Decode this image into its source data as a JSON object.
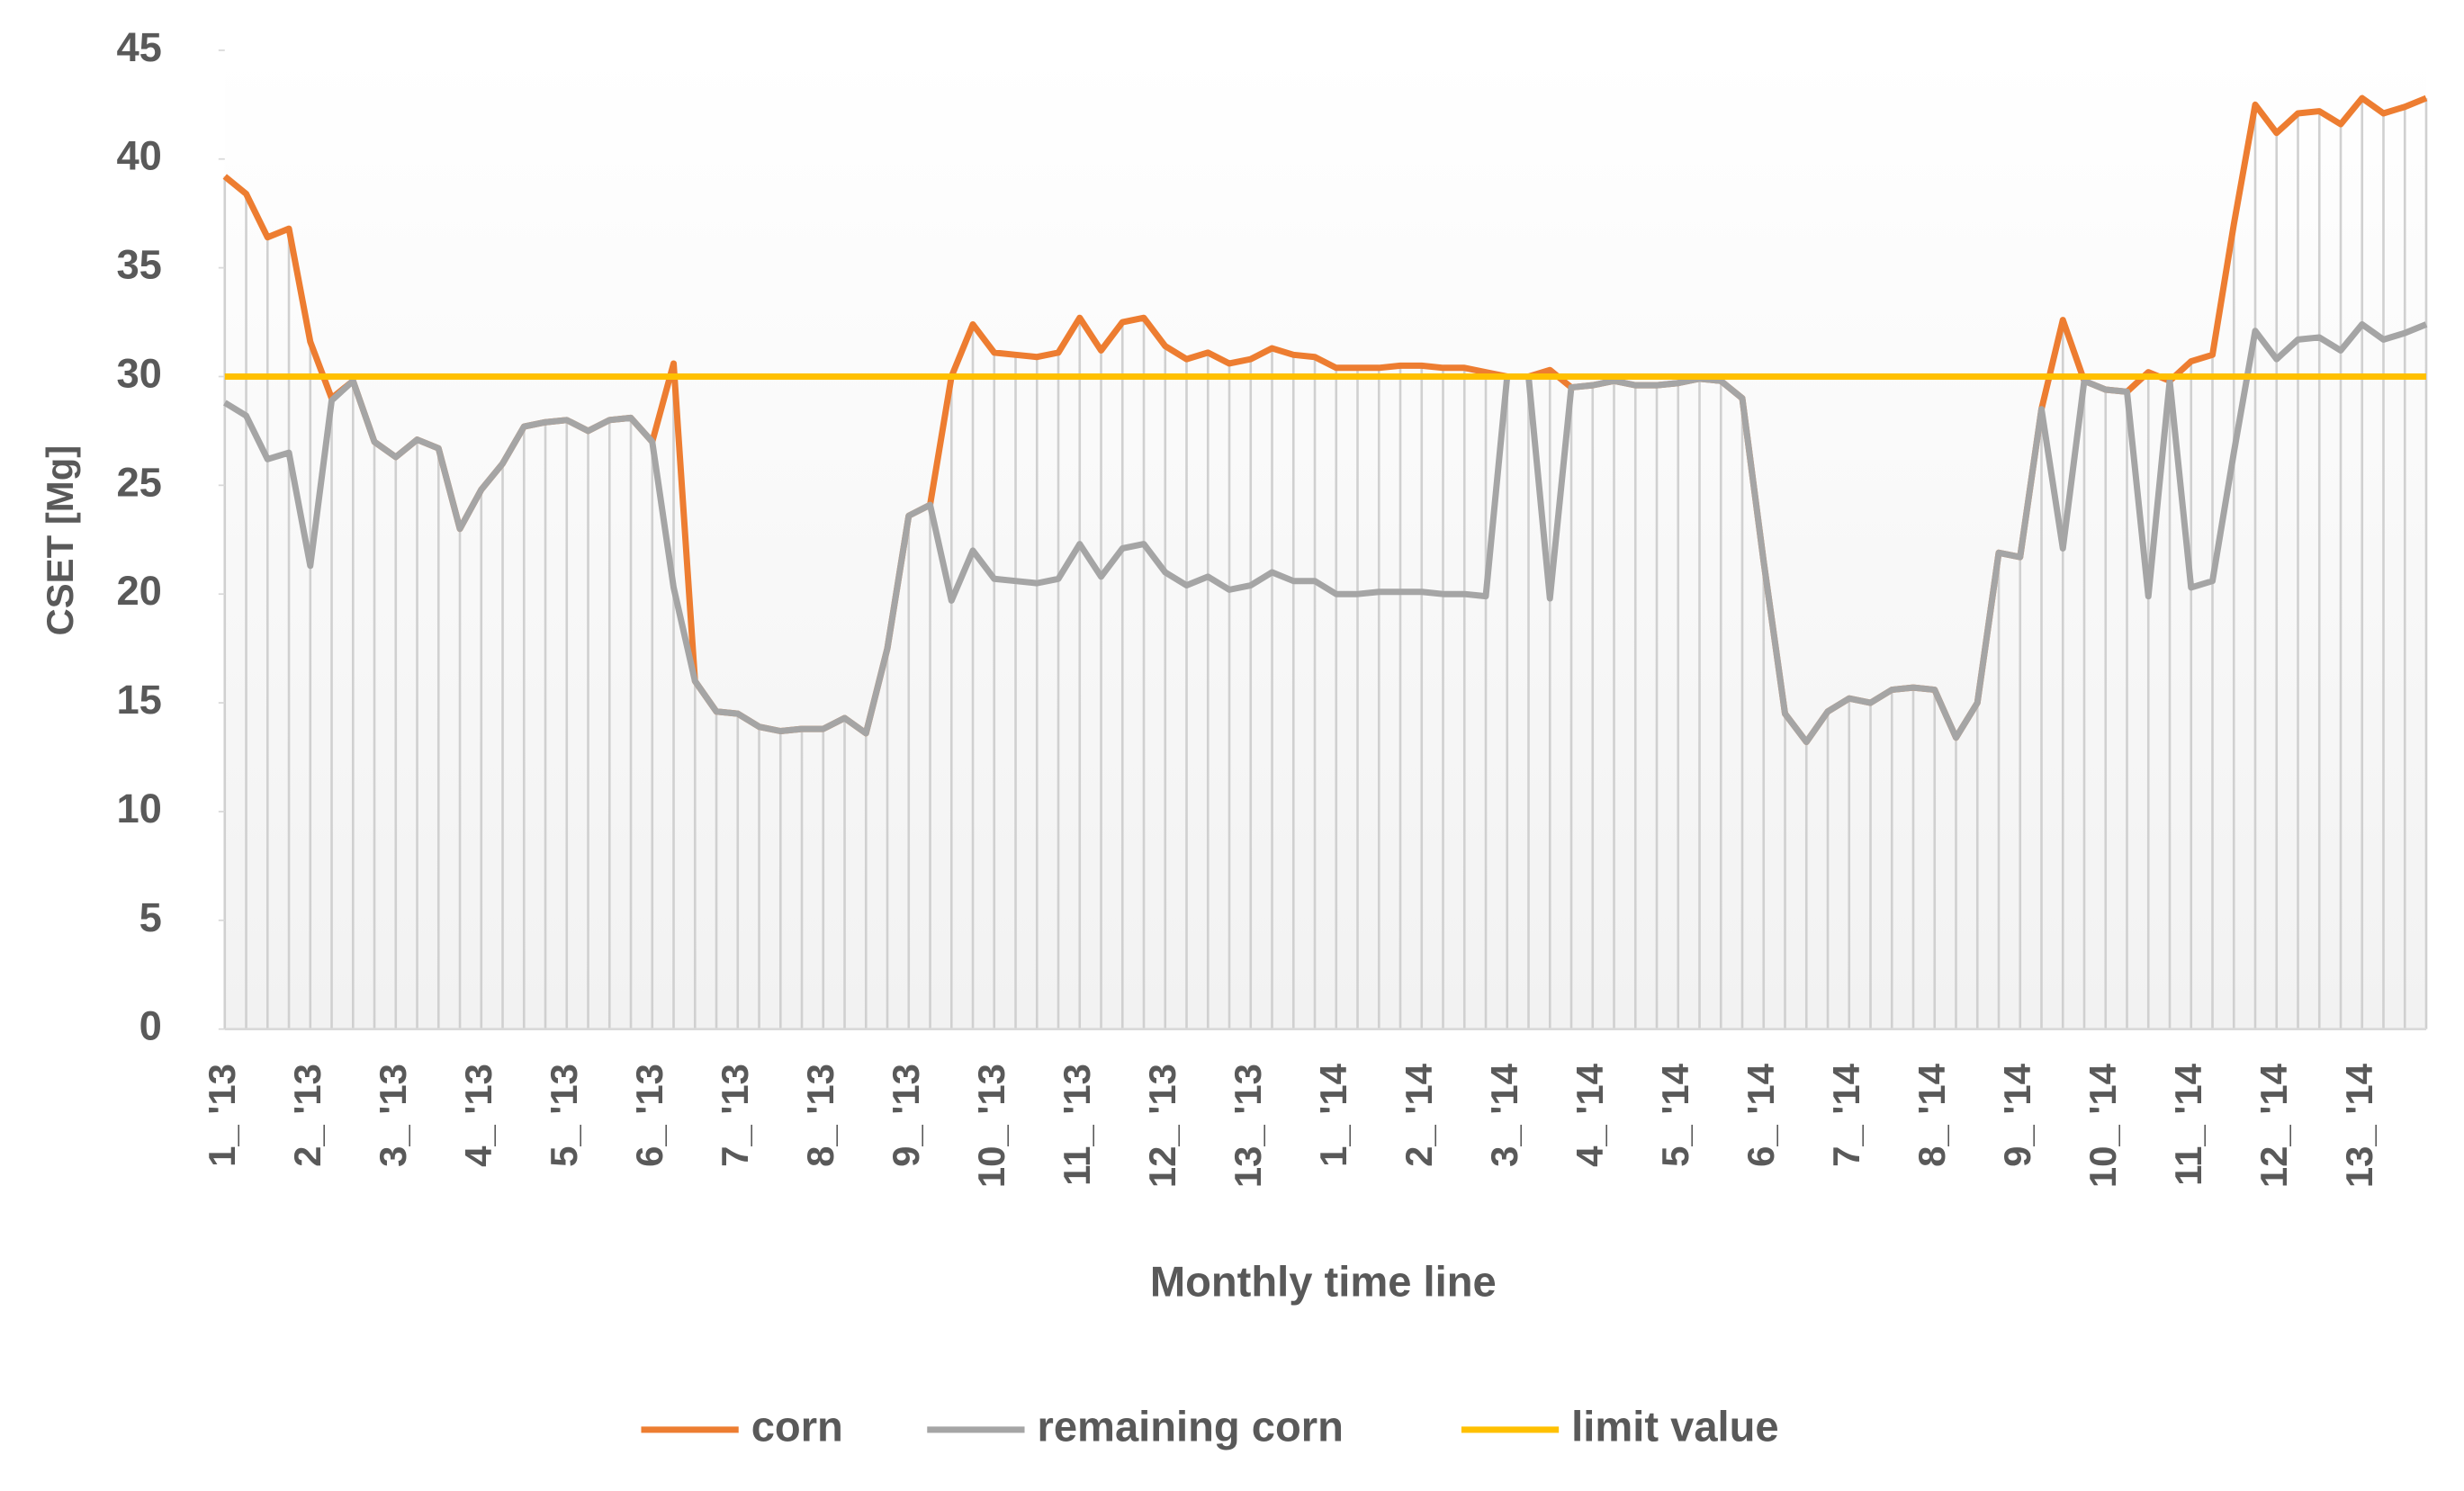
{
  "chart_data": {
    "type": "line",
    "xlabel": "Monthly time line",
    "ylabel": "CSET [Mg]",
    "categories": [
      "1_ '13",
      null,
      null,
      null,
      "2_ '13",
      null,
      null,
      null,
      "3_ '13",
      null,
      null,
      null,
      "4_ '13",
      null,
      null,
      null,
      "5_ '13",
      null,
      null,
      null,
      "6_ '13",
      null,
      null,
      null,
      "7_ '13",
      null,
      null,
      null,
      "8_ '13",
      null,
      null,
      null,
      "9_ '13",
      null,
      null,
      null,
      "10_ '13",
      null,
      null,
      null,
      "11_ '13",
      null,
      null,
      null,
      "12_ '13",
      null,
      null,
      null,
      "13_ '13",
      null,
      null,
      null,
      "1_ '14",
      null,
      null,
      null,
      "2_ '14",
      null,
      null,
      null,
      "3_ '14",
      null,
      null,
      null,
      "4_ '14",
      null,
      null,
      null,
      "5_ '14",
      null,
      null,
      null,
      "6_ '14",
      null,
      null,
      null,
      "7_ '14",
      null,
      null,
      null,
      "8_ '14",
      null,
      null,
      null,
      "9_ '14",
      null,
      null,
      null,
      "10_ '14",
      null,
      null,
      null,
      "11_ '14",
      null,
      null,
      null,
      "12_ '14",
      null,
      null,
      null,
      "13_ '14",
      null,
      null,
      null
    ],
    "series": [
      {
        "name": "corn",
        "color": "#ed7d31",
        "values": [
          39.2,
          38.4,
          36.4,
          36.8,
          31.6,
          29.0,
          29.8,
          27.0,
          26.3,
          27.1,
          26.7,
          23.0,
          24.8,
          26.0,
          27.7,
          27.9,
          28.0,
          27.5,
          28.0,
          28.1,
          27.0,
          30.6,
          16.0,
          14.6,
          14.5,
          13.9,
          13.7,
          13.8,
          13.8,
          14.3,
          13.6,
          17.5,
          23.6,
          24.1,
          30.0,
          32.4,
          31.1,
          31.0,
          30.9,
          31.1,
          32.7,
          31.2,
          32.5,
          32.7,
          31.4,
          30.8,
          31.1,
          30.6,
          30.8,
          31.3,
          31.0,
          30.9,
          30.4,
          30.4,
          30.4,
          30.5,
          30.5,
          30.4,
          30.4,
          30.2,
          30.0,
          30.0,
          30.3,
          29.5,
          29.6,
          29.8,
          29.6,
          29.6,
          29.7,
          29.9,
          29.8,
          29.0,
          21.5,
          14.5,
          13.2,
          14.6,
          15.2,
          15.0,
          15.6,
          15.7,
          15.6,
          13.4,
          15.0,
          21.9,
          21.7,
          28.5,
          32.6,
          29.8,
          29.4,
          29.3,
          30.2,
          29.8,
          30.7,
          31.0,
          37.0,
          42.5,
          41.2,
          42.1,
          42.2,
          41.6,
          42.8,
          42.1,
          42.4,
          42.8
        ]
      },
      {
        "name": "remaining corn",
        "color": "#a5a5a5",
        "values": [
          28.8,
          28.2,
          26.2,
          26.5,
          21.3,
          28.9,
          29.8,
          27.0,
          26.3,
          27.1,
          26.7,
          23.0,
          24.8,
          26.0,
          27.7,
          27.9,
          28.0,
          27.5,
          28.0,
          28.1,
          27.0,
          20.3,
          16.0,
          14.6,
          14.5,
          13.9,
          13.7,
          13.8,
          13.8,
          14.3,
          13.6,
          17.5,
          23.6,
          24.1,
          19.7,
          22.0,
          20.7,
          20.6,
          20.5,
          20.7,
          22.3,
          20.8,
          22.1,
          22.3,
          21.0,
          20.4,
          20.8,
          20.2,
          20.4,
          21.0,
          20.6,
          20.6,
          20.0,
          20.0,
          20.1,
          20.1,
          20.1,
          20.0,
          20.0,
          19.9,
          30.0,
          30.0,
          19.8,
          29.5,
          29.6,
          29.8,
          29.6,
          29.6,
          29.7,
          29.9,
          29.8,
          29.0,
          21.5,
          14.5,
          13.2,
          14.6,
          15.2,
          15.0,
          15.6,
          15.7,
          15.6,
          13.4,
          15.0,
          21.9,
          21.7,
          28.5,
          22.1,
          29.8,
          29.4,
          29.3,
          19.9,
          29.8,
          20.3,
          20.6,
          26.5,
          32.1,
          30.8,
          31.7,
          31.8,
          31.2,
          32.4,
          31.7,
          32.0,
          32.4
        ]
      },
      {
        "name": "limit value",
        "color": "#ffc000",
        "values": [
          30,
          30,
          30,
          30,
          30,
          30,
          30,
          30,
          30,
          30,
          30,
          30,
          30,
          30,
          30,
          30,
          30,
          30,
          30,
          30,
          30,
          30,
          30,
          30,
          30,
          30,
          30,
          30,
          30,
          30,
          30,
          30,
          30,
          30,
          30,
          30,
          30,
          30,
          30,
          30,
          30,
          30,
          30,
          30,
          30,
          30,
          30,
          30,
          30,
          30,
          30,
          30,
          30,
          30,
          30,
          30,
          30,
          30,
          30,
          30,
          30,
          30,
          30,
          30,
          30,
          30,
          30,
          30,
          30,
          30,
          30,
          30,
          30,
          30,
          30,
          30,
          30,
          30,
          30,
          30,
          30,
          30,
          30,
          30,
          30,
          30,
          30,
          30,
          30,
          30,
          30,
          30,
          30,
          30,
          30,
          30,
          30,
          30,
          30,
          30,
          30,
          30,
          30,
          30
        ]
      }
    ],
    "ylim": [
      0,
      45
    ],
    "yticks": [
      0,
      5,
      10,
      15,
      20,
      25,
      30,
      35,
      40,
      45
    ],
    "drop_lines": true,
    "legend": "bottom"
  }
}
